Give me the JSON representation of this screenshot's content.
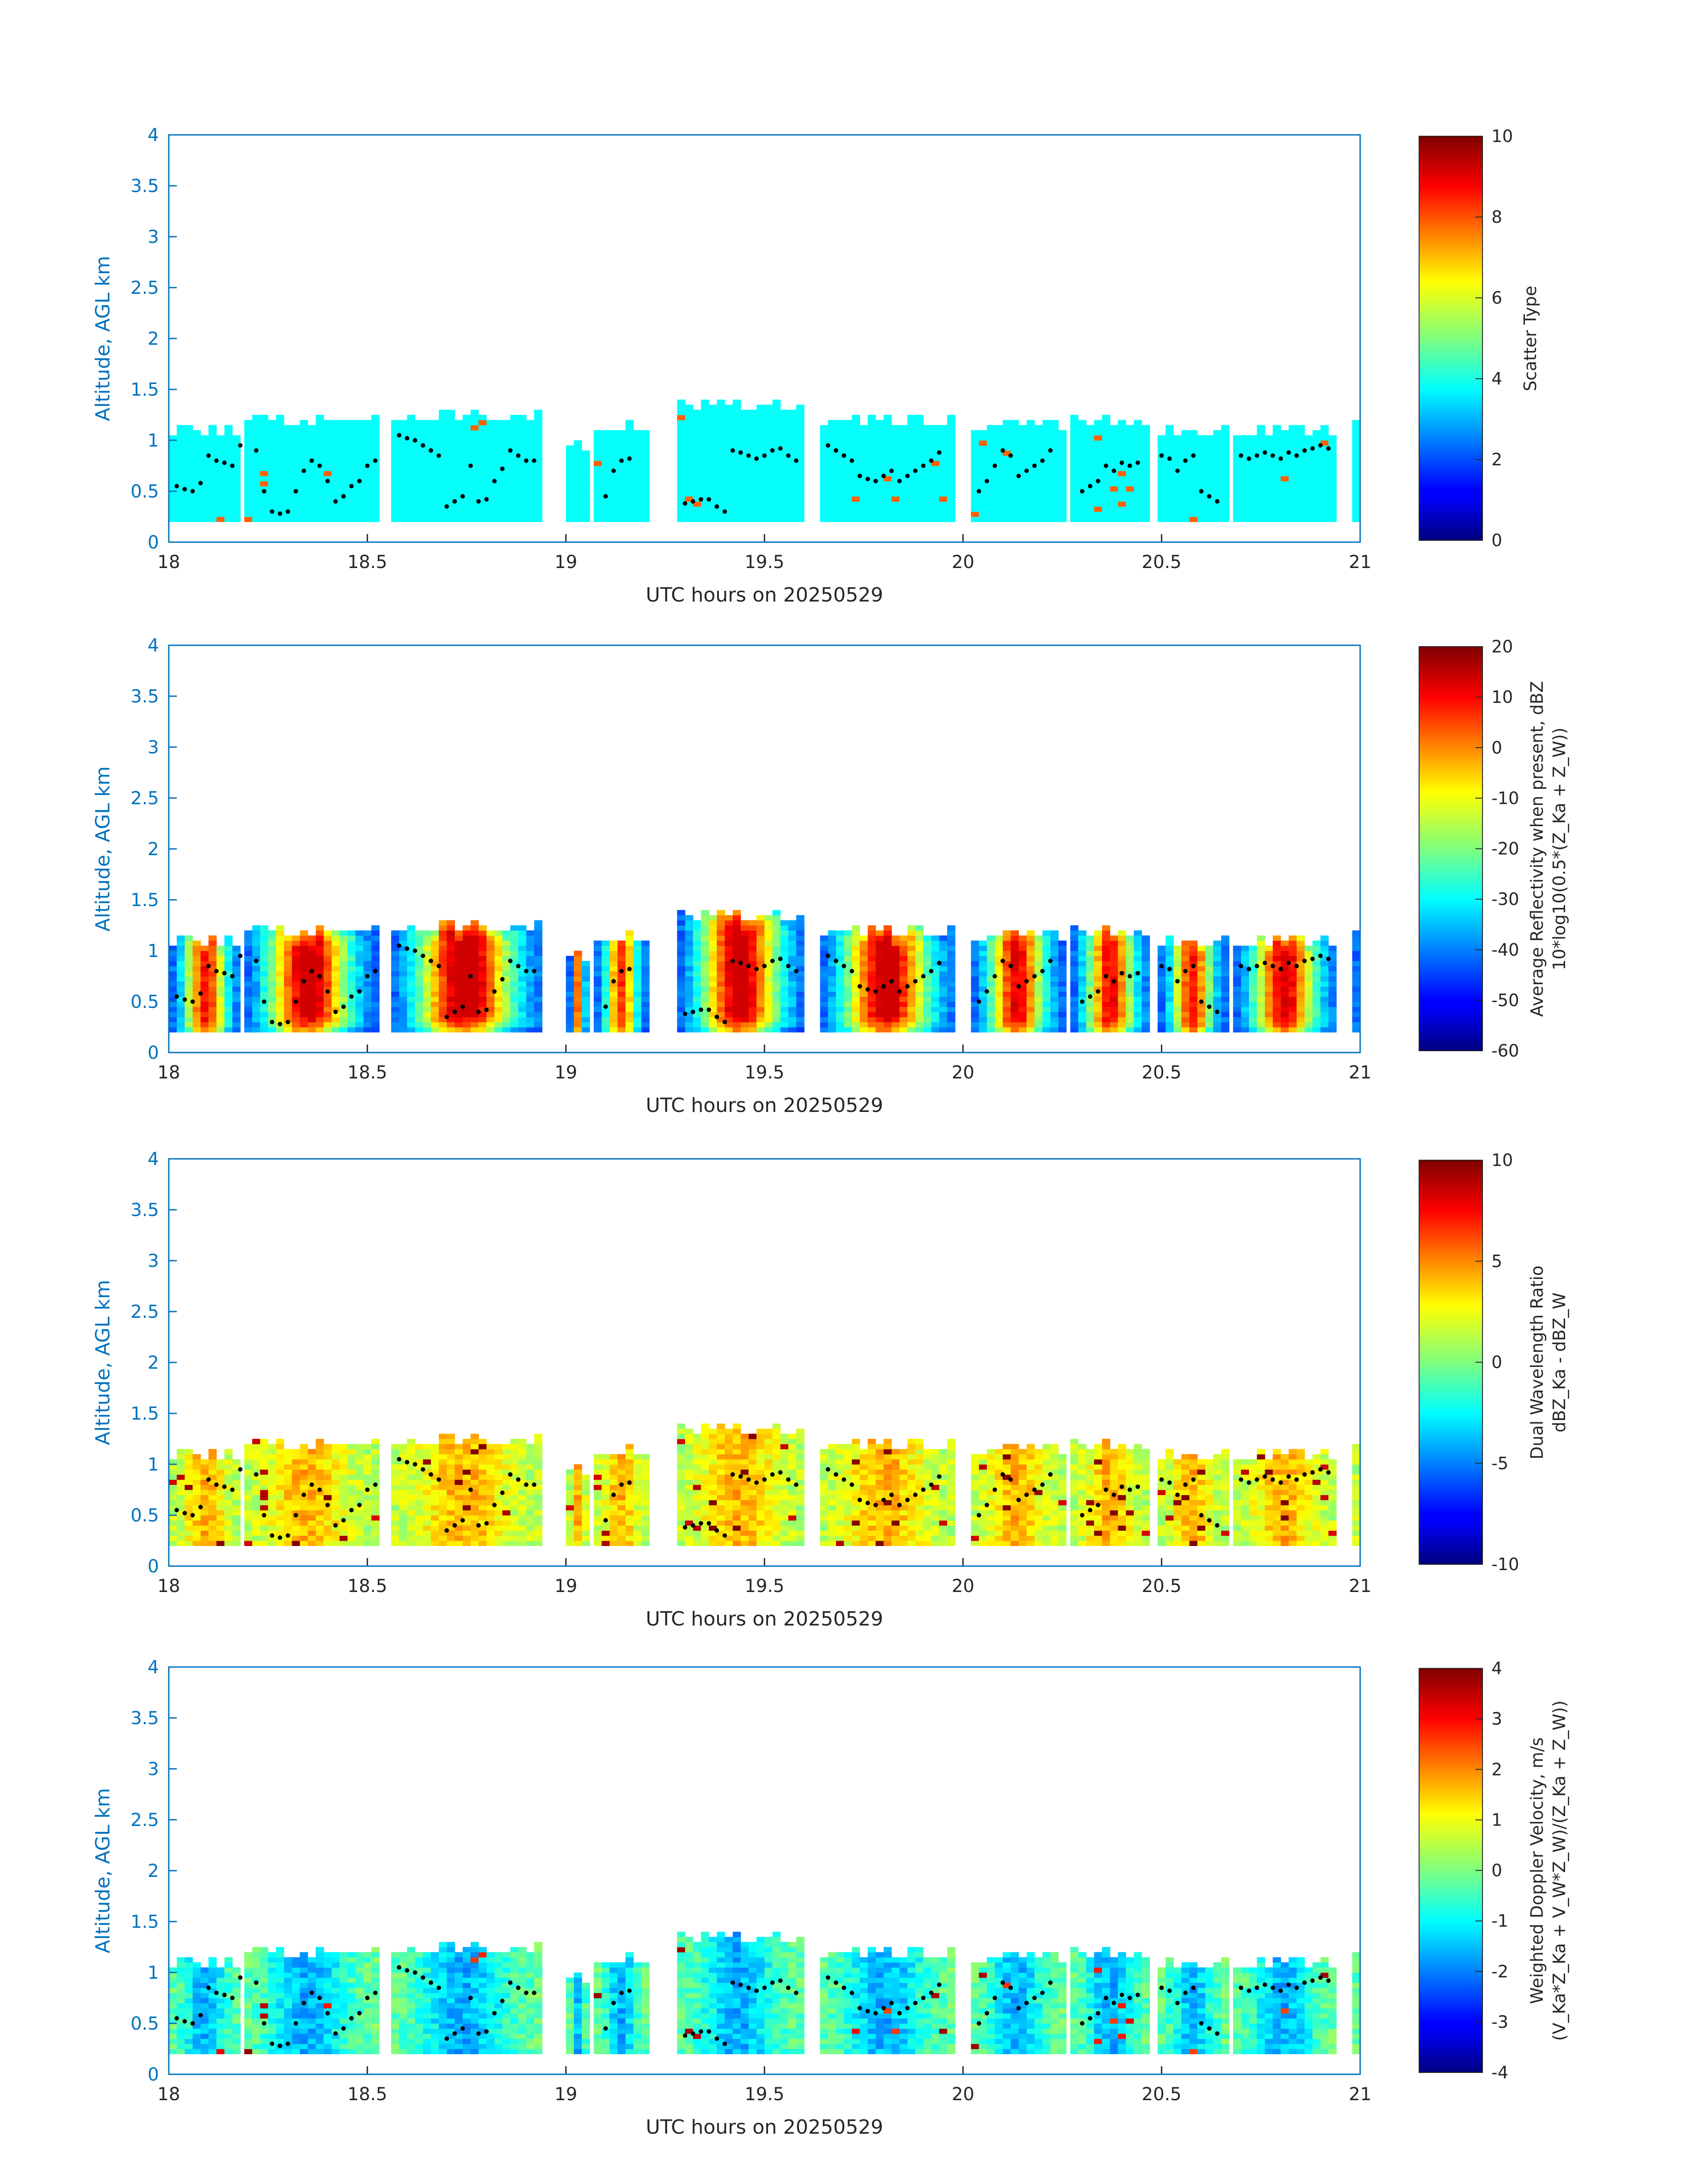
{
  "figure": {
    "background": "#ffffff",
    "axis_color_y": "#0072BD",
    "text_color": "#262626"
  },
  "chart_data": [
    {
      "type": "heatmap",
      "xlabel": "UTC hours on 20250529",
      "ylabel": "Altitude, AGL km",
      "xlim": [
        18,
        21
      ],
      "ylim": [
        0,
        4
      ],
      "xticks": [
        "18",
        "18.5",
        "19",
        "19.5",
        "20",
        "20.5",
        "21"
      ],
      "yticks": [
        "0",
        "0.5",
        "1",
        "1.5",
        "2",
        "2.5",
        "3",
        "3.5",
        "4"
      ],
      "colormap": "jet",
      "colorbar": {
        "label_lines": [
          "Scatter Type"
        ],
        "range": [
          0,
          10
        ],
        "ticks": [
          "0",
          "2",
          "4",
          "6",
          "8",
          "10"
        ]
      },
      "dominant_value": 3.8
    },
    {
      "type": "heatmap",
      "xlabel": "UTC hours on 20250529",
      "ylabel": "Altitude, AGL km",
      "xlim": [
        18,
        21
      ],
      "ylim": [
        0,
        4
      ],
      "xticks": [
        "18",
        "18.5",
        "19",
        "19.5",
        "20",
        "20.5",
        "21"
      ],
      "yticks": [
        "0",
        "0.5",
        "1",
        "1.5",
        "2",
        "2.5",
        "3",
        "3.5",
        "4"
      ],
      "colormap": "jet",
      "colorbar": {
        "label_lines": [
          "Average Reflectivity when present, dBZ",
          "10*log10(0.5*(Z_Ka + Z_W))"
        ],
        "range": [
          -60,
          20
        ],
        "ticks": [
          "-60",
          "-50",
          "-40",
          "-30",
          "-20",
          "-10",
          "0",
          "10",
          "20"
        ]
      }
    },
    {
      "type": "heatmap",
      "xlabel": "UTC hours on 20250529",
      "ylabel": "Altitude, AGL km",
      "xlim": [
        18,
        21
      ],
      "ylim": [
        0,
        4
      ],
      "xticks": [
        "18",
        "18.5",
        "19",
        "19.5",
        "20",
        "20.5",
        "21"
      ],
      "yticks": [
        "0",
        "0.5",
        "1",
        "1.5",
        "2",
        "2.5",
        "3",
        "3.5",
        "4"
      ],
      "colormap": "jet",
      "colorbar": {
        "label_lines": [
          "Dual Wavelength Ratio",
          "dBZ_Ka - dBZ_W"
        ],
        "range": [
          -10,
          10
        ],
        "ticks": [
          "-10",
          "-5",
          "0",
          "5",
          "10"
        ]
      }
    },
    {
      "type": "heatmap",
      "xlabel": "UTC hours on 20250529",
      "ylabel": "Altitude, AGL km",
      "xlim": [
        18,
        21
      ],
      "ylim": [
        0,
        4
      ],
      "xticks": [
        "18",
        "18.5",
        "19",
        "19.5",
        "20",
        "20.5",
        "21"
      ],
      "yticks": [
        "0",
        "0.5",
        "1",
        "1.5",
        "2",
        "2.5",
        "3",
        "3.5",
        "4"
      ],
      "colormap": "jet",
      "colorbar": {
        "label_lines": [
          "Weighted Doppler Velocity, m/s",
          "(V_Ka*Z_Ka + V_W*Z_W)/(Z_Ka + Z_W))"
        ],
        "range": [
          -4,
          4
        ],
        "ticks": [
          "-4",
          "-3",
          "-2",
          "-1",
          "0",
          "1",
          "2",
          "3",
          "4"
        ]
      }
    }
  ],
  "cloud_segments": [
    {
      "x0": 18.0,
      "x1": 18.18,
      "top": 1.15
    },
    {
      "x0": 18.19,
      "x1": 18.52,
      "top": 1.25
    },
    {
      "x0": 18.56,
      "x1": 18.94,
      "top": 1.3
    },
    {
      "x0": 19.0,
      "x1": 19.05,
      "top": 1.0
    },
    {
      "x0": 19.07,
      "x1": 19.2,
      "top": 1.2
    },
    {
      "x0": 19.28,
      "x1": 19.6,
      "top": 1.4
    },
    {
      "x0": 19.64,
      "x1": 19.98,
      "top": 1.25
    },
    {
      "x0": 20.02,
      "x1": 20.25,
      "top": 1.2
    },
    {
      "x0": 20.27,
      "x1": 20.47,
      "top": 1.25
    },
    {
      "x0": 20.49,
      "x1": 20.66,
      "top": 1.15
    },
    {
      "x0": 20.68,
      "x1": 20.94,
      "top": 1.15
    },
    {
      "x0": 20.98,
      "x1": 21.0,
      "top": 1.2
    }
  ],
  "cloud_base_points": {
    "x": [
      18.02,
      18.04,
      18.06,
      18.08,
      18.1,
      18.12,
      18.14,
      18.16,
      18.18,
      18.22,
      18.24,
      18.26,
      18.28,
      18.3,
      18.32,
      18.34,
      18.36,
      18.38,
      18.4,
      18.42,
      18.44,
      18.46,
      18.48,
      18.5,
      18.52,
      18.58,
      18.6,
      18.62,
      18.64,
      18.66,
      18.68,
      18.7,
      18.72,
      18.74,
      18.76,
      18.78,
      18.8,
      18.82,
      18.84,
      18.86,
      18.88,
      18.9,
      18.92,
      19.1,
      19.12,
      19.14,
      19.16,
      19.3,
      19.32,
      19.34,
      19.36,
      19.38,
      19.4,
      19.42,
      19.44,
      19.46,
      19.48,
      19.5,
      19.52,
      19.54,
      19.56,
      19.58,
      19.66,
      19.68,
      19.7,
      19.72,
      19.74,
      19.76,
      19.78,
      19.8,
      19.82,
      19.84,
      19.86,
      19.88,
      19.9,
      19.92,
      19.94,
      20.04,
      20.06,
      20.08,
      20.1,
      20.12,
      20.14,
      20.16,
      20.18,
      20.2,
      20.22,
      20.3,
      20.32,
      20.34,
      20.36,
      20.38,
      20.4,
      20.42,
      20.44,
      20.5,
      20.52,
      20.54,
      20.56,
      20.58,
      20.6,
      20.62,
      20.64,
      20.7,
      20.72,
      20.74,
      20.76,
      20.78,
      20.8,
      20.82,
      20.84,
      20.86,
      20.88,
      20.9,
      20.92
    ],
    "y": [
      0.55,
      0.52,
      0.5,
      0.58,
      0.85,
      0.8,
      0.78,
      0.75,
      0.95,
      0.9,
      0.5,
      0.3,
      0.28,
      0.3,
      0.5,
      0.7,
      0.8,
      0.75,
      0.6,
      0.4,
      0.45,
      0.55,
      0.6,
      0.75,
      0.8,
      1.05,
      1.02,
      1.0,
      0.95,
      0.9,
      0.85,
      0.35,
      0.4,
      0.45,
      0.75,
      0.4,
      0.42,
      0.6,
      0.72,
      0.9,
      0.85,
      0.8,
      0.8,
      0.45,
      0.7,
      0.8,
      0.82,
      0.38,
      0.4,
      0.42,
      0.42,
      0.35,
      0.3,
      0.9,
      0.88,
      0.85,
      0.82,
      0.85,
      0.9,
      0.92,
      0.85,
      0.8,
      0.95,
      0.9,
      0.85,
      0.8,
      0.65,
      0.62,
      0.6,
      0.65,
      0.7,
      0.6,
      0.65,
      0.7,
      0.75,
      0.8,
      0.88,
      0.5,
      0.6,
      0.75,
      0.9,
      0.85,
      0.65,
      0.7,
      0.75,
      0.8,
      0.9,
      0.5,
      0.55,
      0.6,
      0.75,
      0.7,
      0.78,
      0.75,
      0.78,
      0.85,
      0.82,
      0.7,
      0.8,
      0.85,
      0.5,
      0.45,
      0.4,
      0.85,
      0.82,
      0.85,
      0.88,
      0.85,
      0.82,
      0.88,
      0.85,
      0.9,
      0.92,
      0.95,
      0.92
    ]
  }
}
